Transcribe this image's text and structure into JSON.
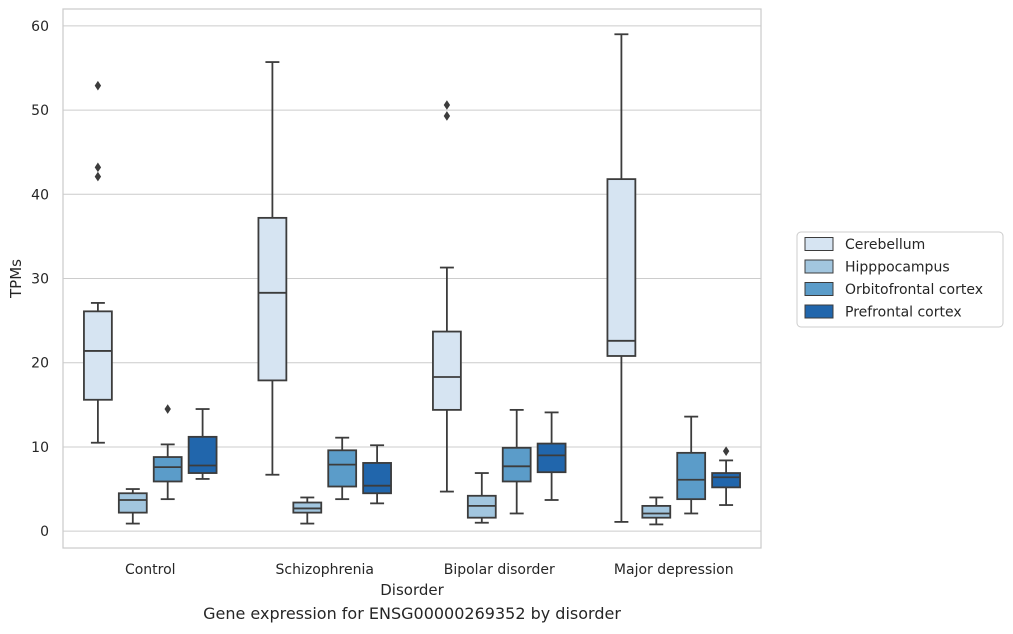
{
  "chart_data": {
    "type": "boxplot",
    "xlabel": "Disorder",
    "ylabel": "TPMs",
    "ylim": [
      -2,
      62
    ],
    "yticks": [
      0,
      10,
      20,
      30,
      40,
      50,
      60
    ],
    "grid": "horizontal",
    "legend_position": "right",
    "categories": [
      "Control",
      "Schizophrenia",
      "Bipolar disorder",
      "Major depression"
    ],
    "series": [
      {
        "name": "Cerebellum",
        "color": "#d6e4f2",
        "boxes": [
          {
            "whislo": 10.5,
            "q1": 15.6,
            "med": 21.4,
            "q3": 26.1,
            "whishi": 27.1,
            "fliers": [
              42.1,
              43.2,
              52.9
            ]
          },
          {
            "whislo": 6.7,
            "q1": 17.9,
            "med": 28.3,
            "q3": 37.2,
            "whishi": 55.7,
            "fliers": []
          },
          {
            "whislo": 4.7,
            "q1": 14.4,
            "med": 18.3,
            "q3": 23.7,
            "whishi": 31.3,
            "fliers": [
              49.3,
              50.6
            ]
          },
          {
            "whislo": 1.1,
            "q1": 20.8,
            "med": 22.6,
            "q3": 41.8,
            "whishi": 59.0,
            "fliers": []
          }
        ]
      },
      {
        "name": "Hipppocampus",
        "color": "#a2c6df",
        "boxes": [
          {
            "whislo": 0.9,
            "q1": 2.2,
            "med": 3.7,
            "q3": 4.5,
            "whishi": 5.0,
            "fliers": []
          },
          {
            "whislo": 0.9,
            "q1": 2.2,
            "med": 2.7,
            "q3": 3.4,
            "whishi": 4.0,
            "fliers": []
          },
          {
            "whislo": 1.0,
            "q1": 1.6,
            "med": 3.0,
            "q3": 4.2,
            "whishi": 6.9,
            "fliers": []
          },
          {
            "whislo": 0.8,
            "q1": 1.6,
            "med": 2.1,
            "q3": 3.0,
            "whishi": 4.0,
            "fliers": []
          }
        ]
      },
      {
        "name": "Orbitofrontal cortex",
        "color": "#5b9cc9",
        "boxes": [
          {
            "whislo": 3.8,
            "q1": 5.9,
            "med": 7.6,
            "q3": 8.8,
            "whishi": 10.3,
            "fliers": [
              14.5
            ]
          },
          {
            "whislo": 3.8,
            "q1": 5.3,
            "med": 7.9,
            "q3": 9.6,
            "whishi": 11.1,
            "fliers": []
          },
          {
            "whislo": 2.1,
            "q1": 5.9,
            "med": 7.7,
            "q3": 9.9,
            "whishi": 14.4,
            "fliers": []
          },
          {
            "whislo": 2.1,
            "q1": 3.8,
            "med": 6.1,
            "q3": 9.3,
            "whishi": 13.6,
            "fliers": []
          }
        ]
      },
      {
        "name": "Prefrontal cortex",
        "color": "#2166ac",
        "boxes": [
          {
            "whislo": 6.2,
            "q1": 6.9,
            "med": 7.8,
            "q3": 11.2,
            "whishi": 14.5,
            "fliers": []
          },
          {
            "whislo": 3.3,
            "q1": 4.5,
            "med": 5.4,
            "q3": 8.1,
            "whishi": 10.2,
            "fliers": []
          },
          {
            "whislo": 3.7,
            "q1": 7.0,
            "med": 9.0,
            "q3": 10.4,
            "whishi": 14.1,
            "fliers": []
          },
          {
            "whislo": 3.1,
            "q1": 5.2,
            "med": 6.4,
            "q3": 6.9,
            "whishi": 8.4,
            "fliers": [
              9.5
            ]
          }
        ]
      }
    ]
  },
  "caption": "Gene expression for ENSG00000269352 by disorder"
}
